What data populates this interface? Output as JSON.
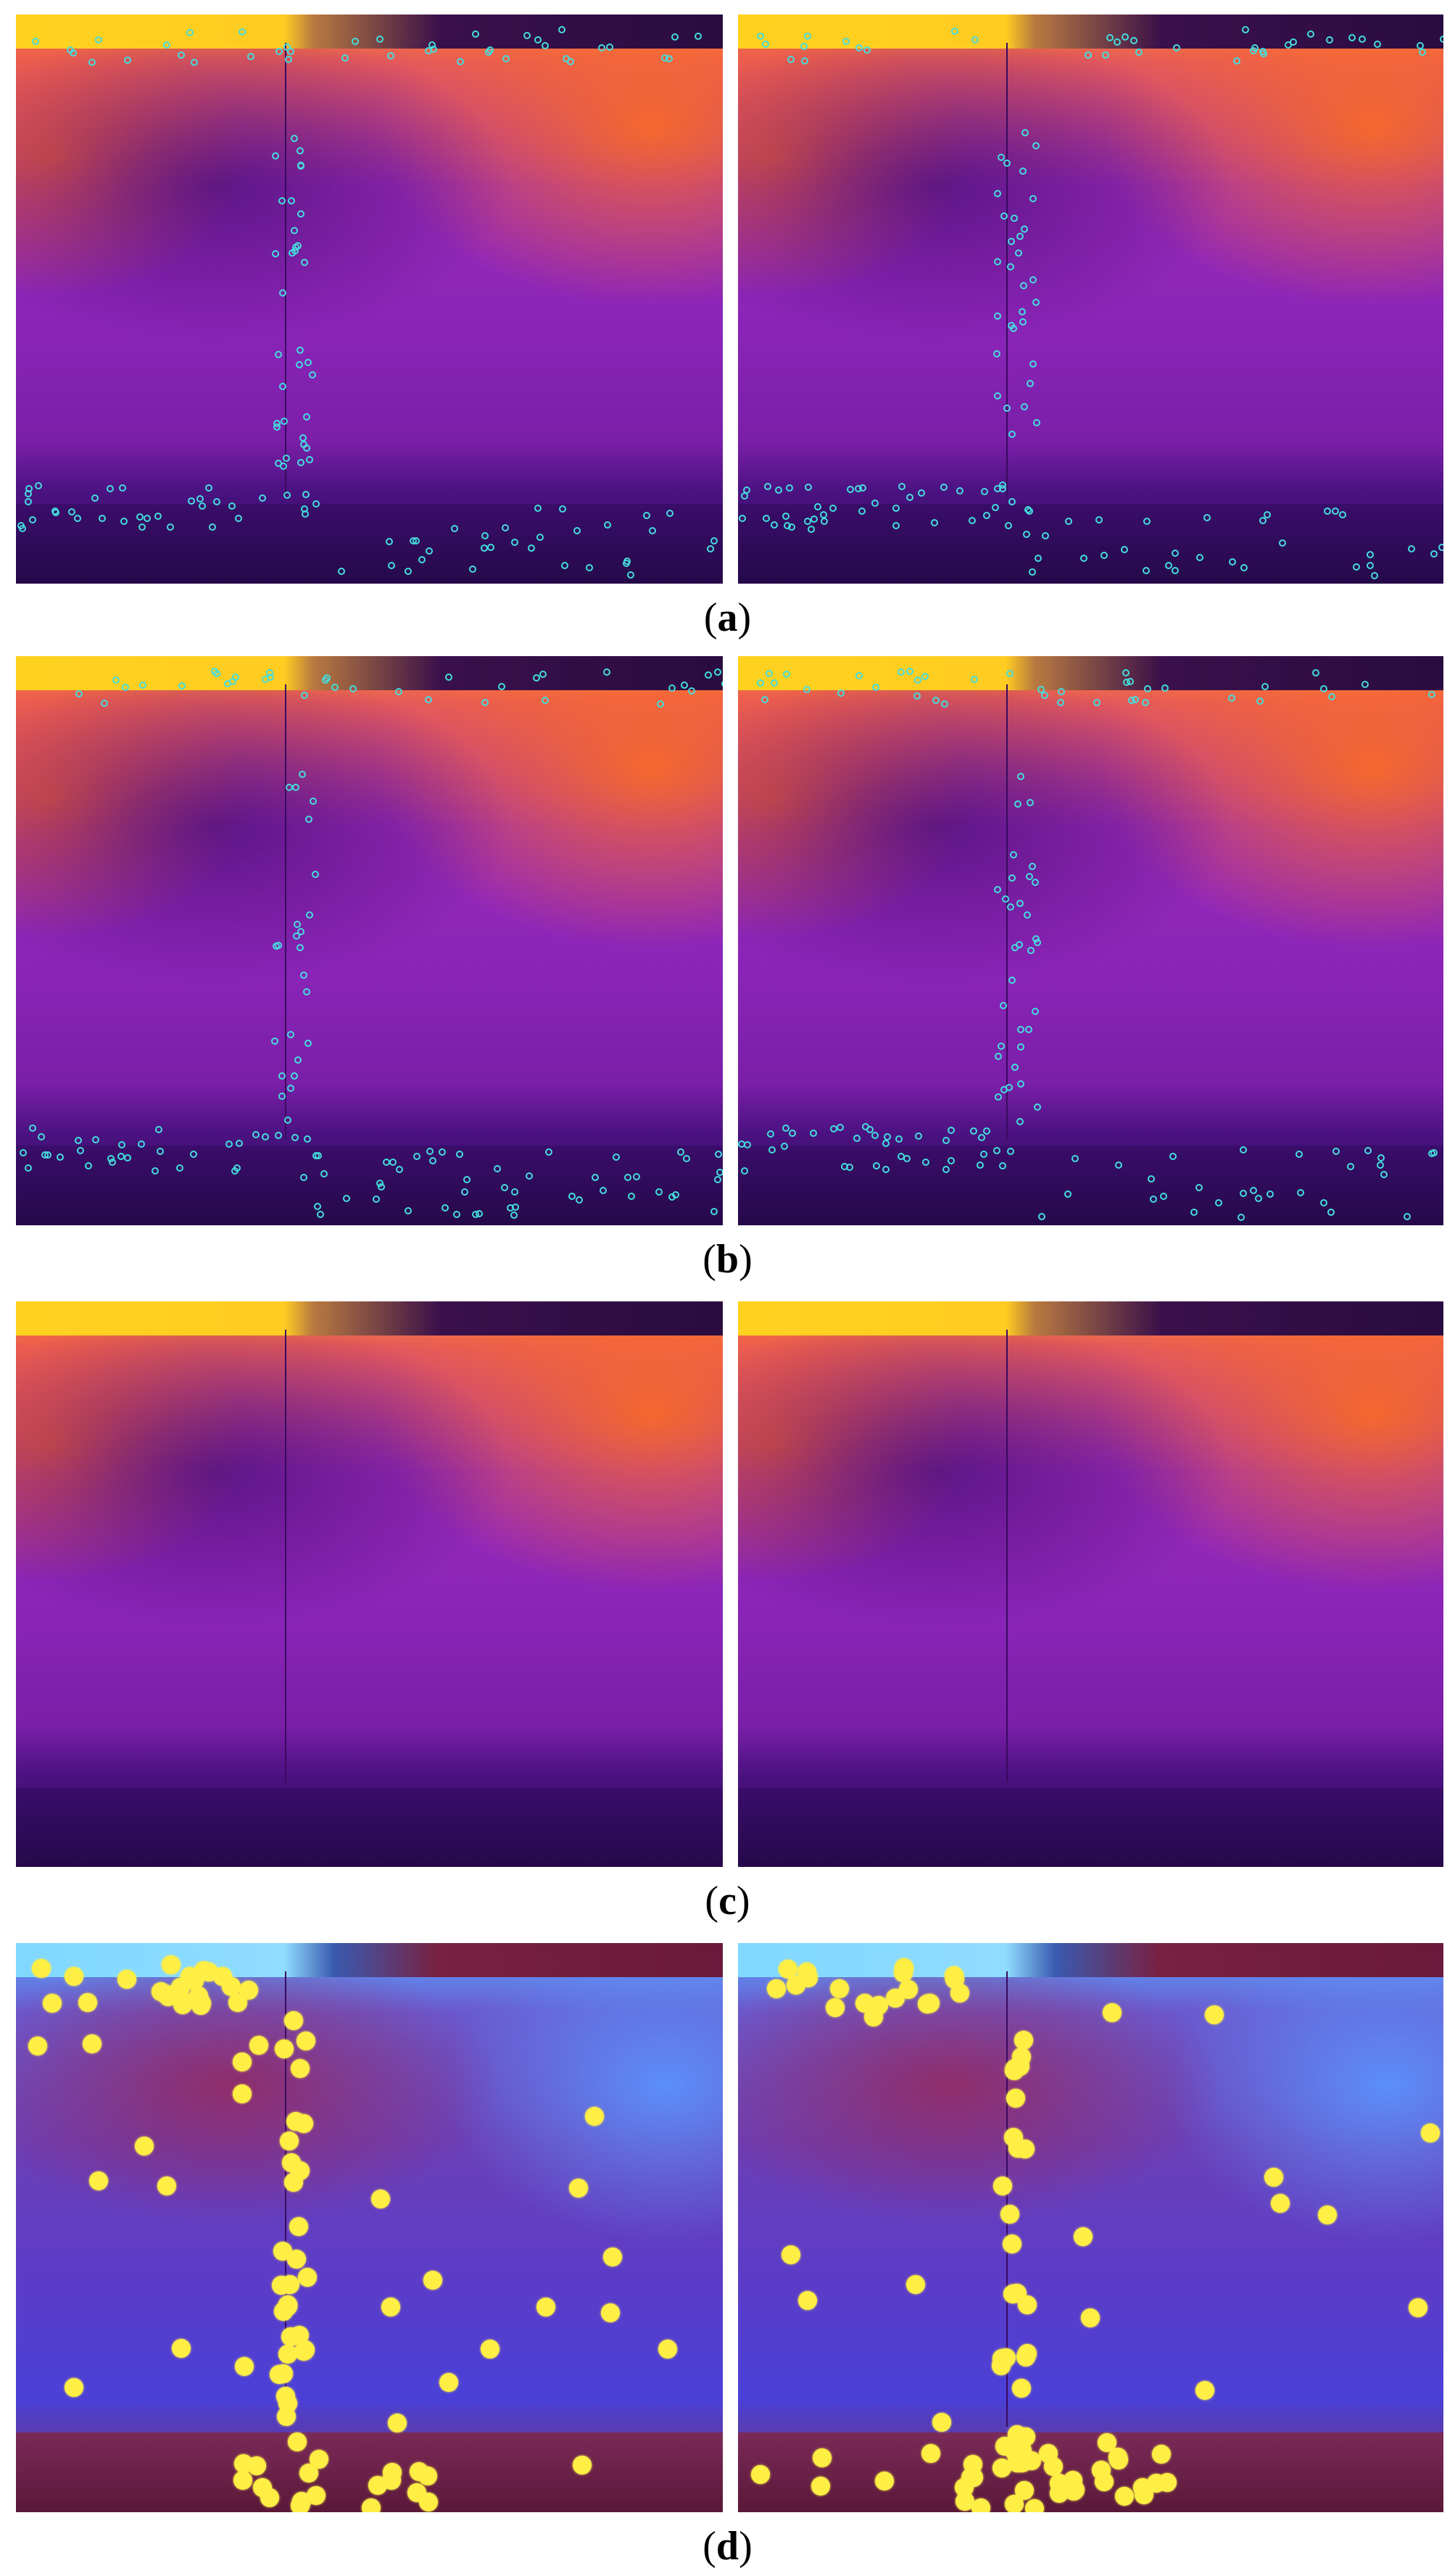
{
  "figure": {
    "panels": [
      {
        "id": "a",
        "label": "a",
        "style": "thermal"
      },
      {
        "id": "b",
        "label": "b",
        "style": "thermal"
      },
      {
        "id": "c",
        "label": "c",
        "style": "thermal"
      },
      {
        "id": "d",
        "label": "d",
        "style": "blue"
      }
    ],
    "colors": {
      "thermal_high": "#ff8a2a",
      "thermal_mid": "#9a2ab8",
      "thermal_low": "#2a0c5a",
      "keypoint_ring": "#44dddd",
      "keypoint_yellow": "#ffee44"
    }
  }
}
